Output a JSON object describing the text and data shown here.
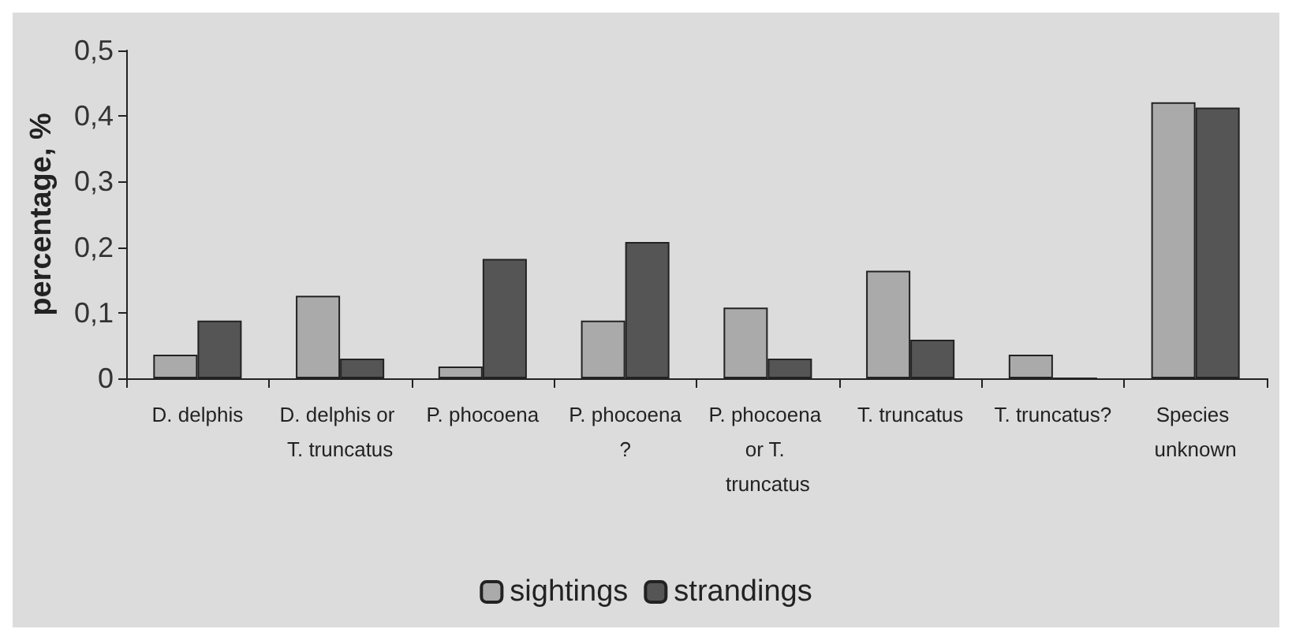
{
  "chart_data": {
    "type": "bar",
    "ylabel": "percentage, %",
    "categories": [
      "D. delphis",
      "D. delphis or T. truncatus",
      "P. phocoena",
      "P. phocoena?",
      "P. phocoena or T. truncatus",
      "T. truncatus",
      "T. truncatus?",
      "Species unknown"
    ],
    "series": [
      {
        "name": "sightings",
        "color": "#aaaaaa",
        "values": [
          0.036,
          0.126,
          0.018,
          0.088,
          0.108,
          0.164,
          0.036,
          0.421
        ]
      },
      {
        "name": "strandings",
        "color": "#555555",
        "values": [
          0.088,
          0.03,
          0.182,
          0.208,
          0.03,
          0.059,
          0,
          0.413
        ]
      }
    ],
    "ylim": [
      0,
      0.5
    ],
    "yticks": [
      0,
      {
        "value": 0.1,
        "label": "0,1"
      },
      {
        "value": 0.2,
        "label": "0,2"
      },
      {
        "value": 0.3,
        "label": "0,3"
      },
      {
        "value": 0.4,
        "label": "0,4"
      },
      {
        "value": 0.5,
        "label": "0,5"
      }
    ],
    "grid": false,
    "legend": "bottom"
  }
}
